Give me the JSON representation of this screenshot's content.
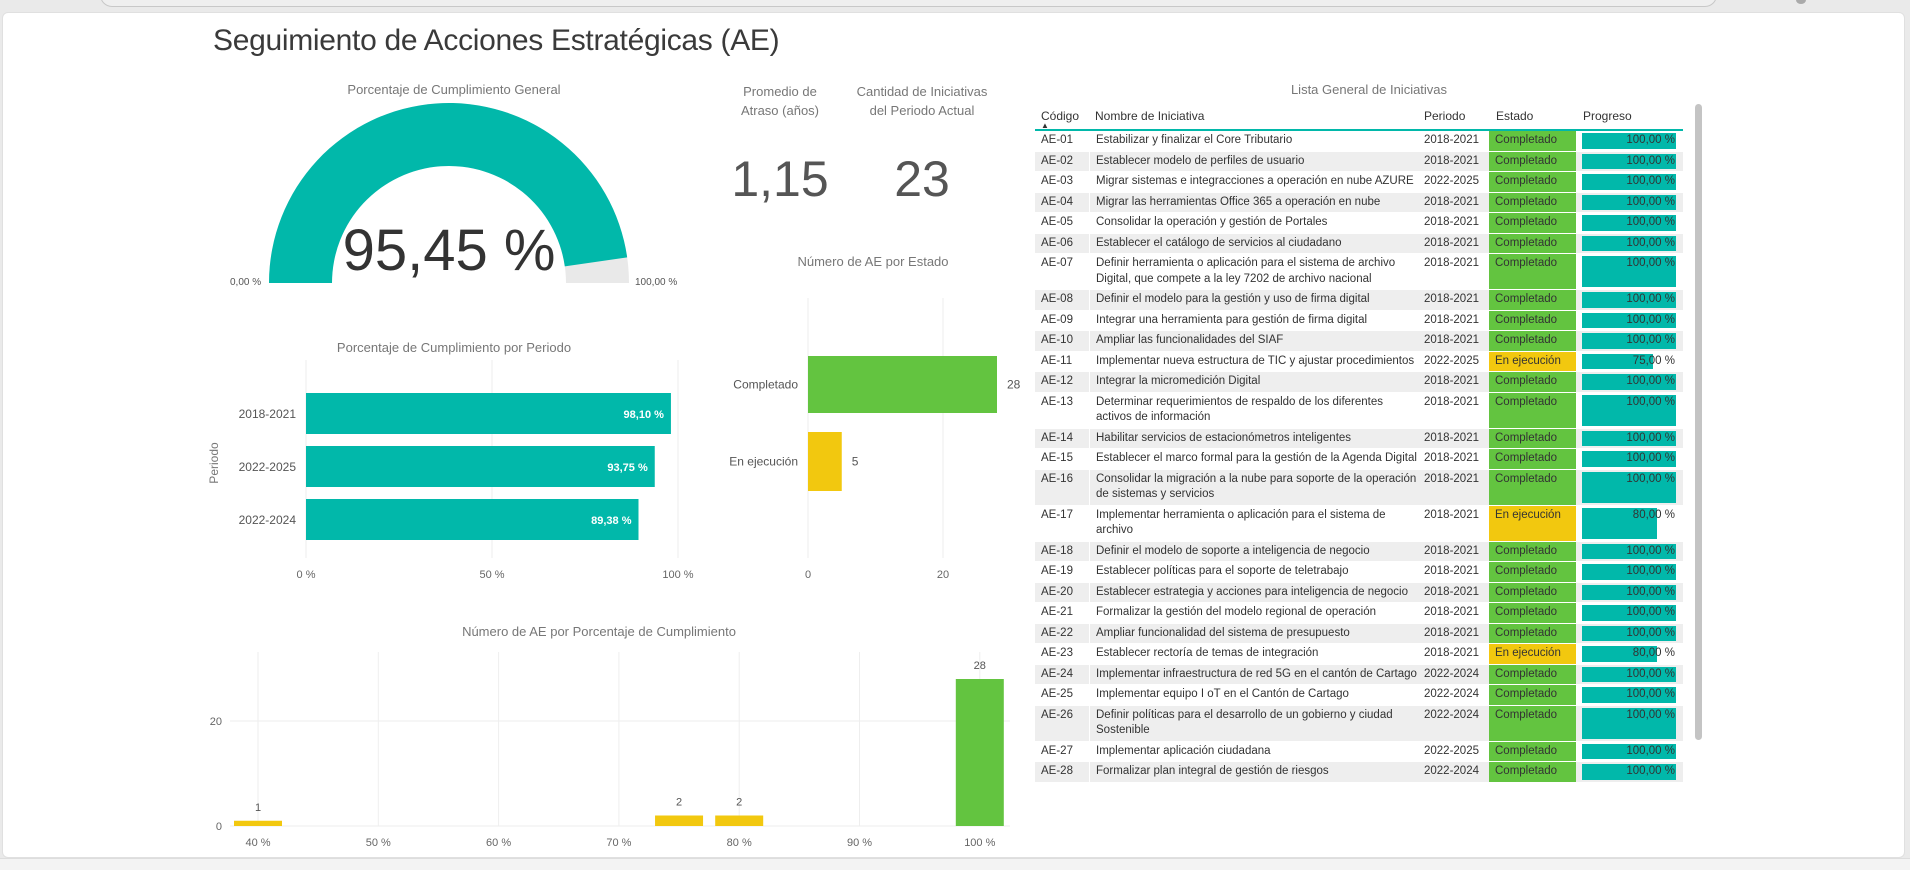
{
  "title": "Seguimiento de Acciones Estratégicas (AE)",
  "colors": {
    "teal": "#01B8AA",
    "green": "#63C440",
    "yellow": "#F2C80F",
    "track": "#E9E9E9"
  },
  "gauge": {
    "title": "Porcentaje de Cumplimiento General",
    "value": 95.45,
    "value_label": "95,45 %",
    "min_label": "0,00 %",
    "max_label": "100,00 %"
  },
  "kpis": [
    {
      "title_l1": "Promedio de",
      "title_l2": "Atraso (años)",
      "value": "1,15"
    },
    {
      "title_l1": "Cantidad de Iniciativas",
      "title_l2": "del Periodo Actual",
      "value": "23"
    }
  ],
  "chart_data": [
    {
      "type": "bar",
      "orientation": "horizontal",
      "title": "Porcentaje de Cumplimiento por Periodo",
      "ylabel": "Periodo",
      "xlabel": "",
      "categories": [
        "2018-2021",
        "2022-2025",
        "2022-2024"
      ],
      "values": [
        98.1,
        93.75,
        89.38
      ],
      "value_labels": [
        "98,10 %",
        "93,75 %",
        "89,38 %"
      ],
      "xlim": [
        0,
        100
      ],
      "xticks": [
        0,
        50,
        100
      ],
      "xtick_labels": [
        "0 %",
        "50 %",
        "100 %"
      ]
    },
    {
      "type": "bar",
      "orientation": "horizontal",
      "title": "Número de AE por Estado",
      "categories": [
        "Completado",
        "En ejecución"
      ],
      "values": [
        28,
        5
      ],
      "value_labels": [
        "28",
        "5"
      ],
      "xticks": [
        0,
        20
      ],
      "xtick_labels": [
        "0",
        "20"
      ]
    },
    {
      "type": "bar",
      "title": "Número de AE por Porcentaje de Cumplimiento",
      "x": [
        40,
        75,
        80,
        100
      ],
      "values": [
        1,
        2,
        2,
        28
      ],
      "value_labels": [
        "1",
        "2",
        "2",
        "28"
      ],
      "xticks": [
        40,
        50,
        60,
        70,
        80,
        90,
        100
      ],
      "xtick_labels": [
        "40 %",
        "50 %",
        "60 %",
        "70 %",
        "80 %",
        "90 %",
        "100 %"
      ],
      "yticks": [
        0,
        20
      ],
      "ytick_labels": [
        "0",
        "20"
      ]
    }
  ],
  "table": {
    "title": "Lista General de Iniciativas",
    "headers": [
      "Código",
      "Nombre de Iniciativa",
      "Periodo",
      "Estado",
      "Progreso"
    ],
    "rows": [
      [
        "AE-01",
        "Estabilizar y finalizar el Core Tributario",
        "2018-2021",
        "Completado",
        100,
        "100,00 %"
      ],
      [
        "AE-02",
        "Establecer modelo de perfiles de usuario",
        "2018-2021",
        "Completado",
        100,
        "100,00 %"
      ],
      [
        "AE-03",
        "Migrar sistemas e integracciones a operación en nube AZURE",
        "2022-2025",
        "Completado",
        100,
        "100,00 %"
      ],
      [
        "AE-04",
        "Migrar las herramientas Office 365 a operación en nube",
        "2018-2021",
        "Completado",
        100,
        "100,00 %"
      ],
      [
        "AE-05",
        "Consolidar la operación y gestión de Portales",
        "2018-2021",
        "Completado",
        100,
        "100,00 %"
      ],
      [
        "AE-06",
        "Establecer el catálogo de servicios al ciudadano",
        "2018-2021",
        "Completado",
        100,
        "100,00 %"
      ],
      [
        "AE-07",
        "Definir herramienta o aplicación para el sistema de archivo Digital, que compete a la ley 7202 de archivo nacional",
        "2018-2021",
        "Completado",
        100,
        "100,00 %"
      ],
      [
        "AE-08",
        "Definir el modelo para la gestión y uso de firma digital",
        "2018-2021",
        "Completado",
        100,
        "100,00 %"
      ],
      [
        "AE-09",
        "Integrar una herramienta para gestión de firma digital",
        "2018-2021",
        "Completado",
        100,
        "100,00 %"
      ],
      [
        "AE-10",
        "Ampliar las funcionalidades del SIAF",
        "2018-2021",
        "Completado",
        100,
        "100,00 %"
      ],
      [
        "AE-11",
        "Implementar nueva estructura de TIC y ajustar procedimientos",
        "2022-2025",
        "En ejecución",
        75,
        "75,00 %"
      ],
      [
        "AE-12",
        "Integrar la micromedición Digital",
        "2018-2021",
        "Completado",
        100,
        "100,00 %"
      ],
      [
        "AE-13",
        "Determinar requerimientos de respaldo de los diferentes activos de información",
        "2018-2021",
        "Completado",
        100,
        "100,00 %"
      ],
      [
        "AE-14",
        "Habilitar servicios de estacionómetros inteligentes",
        "2018-2021",
        "Completado",
        100,
        "100,00 %"
      ],
      [
        "AE-15",
        "Establecer el marco formal para la gestión de la Agenda Digital",
        "2018-2021",
        "Completado",
        100,
        "100,00 %"
      ],
      [
        "AE-16",
        "Consolidar la migración a la nube para soporte de la operación de sistemas y servicios",
        "2018-2021",
        "Completado",
        100,
        "100,00 %"
      ],
      [
        "AE-17",
        "Implementar herramienta o aplicación para el sistema de archivo",
        "2018-2021",
        "En ejecución",
        80,
        "80,00 %"
      ],
      [
        "AE-18",
        "Definir el modelo de soporte a inteligencia de negocio",
        "2018-2021",
        "Completado",
        100,
        "100,00 %"
      ],
      [
        "AE-19",
        "Establecer políticas para el soporte de teletrabajo",
        "2018-2021",
        "Completado",
        100,
        "100,00 %"
      ],
      [
        "AE-20",
        "Establecer estrategia y acciones para inteligencia de negocio",
        "2018-2021",
        "Completado",
        100,
        "100,00 %"
      ],
      [
        "AE-21",
        "Formalizar la gestión del modelo regional de operación",
        "2018-2021",
        "Completado",
        100,
        "100,00 %"
      ],
      [
        "AE-22",
        "Ampliar funcionalidad del sistema de presupuesto",
        "2018-2021",
        "Completado",
        100,
        "100,00 %"
      ],
      [
        "AE-23",
        "Establecer rectoría de temas de integración",
        "2018-2021",
        "En ejecución",
        80,
        "80,00 %"
      ],
      [
        "AE-24",
        "Implementar infraestructura de red 5G en el cantón de Cartago",
        "2022-2024",
        "Completado",
        100,
        "100,00 %"
      ],
      [
        "AE-25",
        "Implementar equipo I oT en el Cantón de Cartago",
        "2022-2024",
        "Completado",
        100,
        "100,00 %"
      ],
      [
        "AE-26",
        "Definir políticas para el desarrollo de un gobierno y ciudad Sostenible",
        "2022-2024",
        "Completado",
        100,
        "100,00 %"
      ],
      [
        "AE-27",
        "Implementar aplicación ciudadana",
        "2022-2025",
        "Completado",
        100,
        "100,00 %"
      ],
      [
        "AE-28",
        "Formalizar plan integral de gestión de riesgos",
        "2022-2024",
        "Completado",
        100,
        "100,00 %"
      ]
    ]
  }
}
